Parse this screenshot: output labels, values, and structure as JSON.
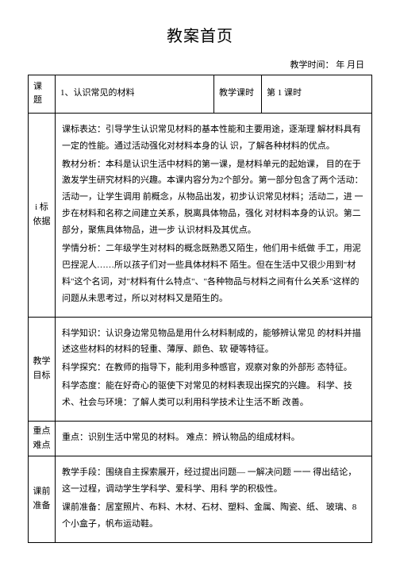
{
  "doc": {
    "title": "教案首页",
    "time_label": "教学时间：",
    "time_value": "年 月日",
    "header": {
      "keti_label": "课题",
      "keti_value": "1、认识常见的材料",
      "keshi_label": "教学课时",
      "keshi_value": "第 1 课时"
    },
    "rows": {
      "yiju": {
        "label": "i 标 依据",
        "p1": "课标表达：引导学生认识常见材料的基本性能和主要用途，逐渐理 解材料具有一定的性能。通过活动强化对材料本身的认 识，了解各种材料的优点。",
        "p2": "教材分析：本科是认识生活中材料的第一课，是材料单元的起始课， 目的在于激发学生研究材料的兴趣。本课内容分为2个部分。第一部分包含了两个活动：活动一，让学生调用 前概念，从物品出发，初步认识常见材料；活动二，进 一步在材料和名称之间建立关系，脱离具体物品，强化 对材料本身的认识。第二部分，聚焦具体物品，进一步 认识材料及其优点。",
        "p3": "学情分析：二年级学生对材料的概念既熟悉又陌生，他们用卡纸做 手工，用泥巴捏泥人……所以孩子们对一些具体材料不 陌生。但在生活中又很少用到\"材料\"这个名词，对\"材料有什么特点\"、\"各种物品与材料之间有什么关系\"这样的问题从未思考过，所以对材料又是陌生的。"
      },
      "mubiao": {
        "label": "教学目标",
        "p1": "科学知识：认识身边常见物品是用什么材料制成的，能够辨认常见 的材料并描述这些材料的材料的轻重、薄厚、颜色、软 硬等特征。",
        "p2": "科学探究：在教师的指导下，能利用多种感官，观察对象的外部形 态特征。",
        "p3": "科学态度：能在好奇心的驱使下对常见的材料表现出探究的兴趣。 科学、技术、社会与环境：了解人类可以利用科学技术让生活不断 改善。"
      },
      "zhongdian": {
        "label": "重点难点",
        "content": "重点：识别生活中常见的材料。 难点：辨认物品的组成材料。"
      },
      "zhunbei": {
        "label": "课前准备",
        "p1": "教学手段：围绕自主探索展开，经过提出问题— 一解决问题 一一 得出结论，这一过程，调动学生学科学、爱科学、用科 学的积极性。",
        "p2": "课前准备：居室照片、布料、木材、石材、塑料、金属、陶瓷、纸、 玻璃、8个小盒子，帆布运动鞋。"
      }
    }
  }
}
